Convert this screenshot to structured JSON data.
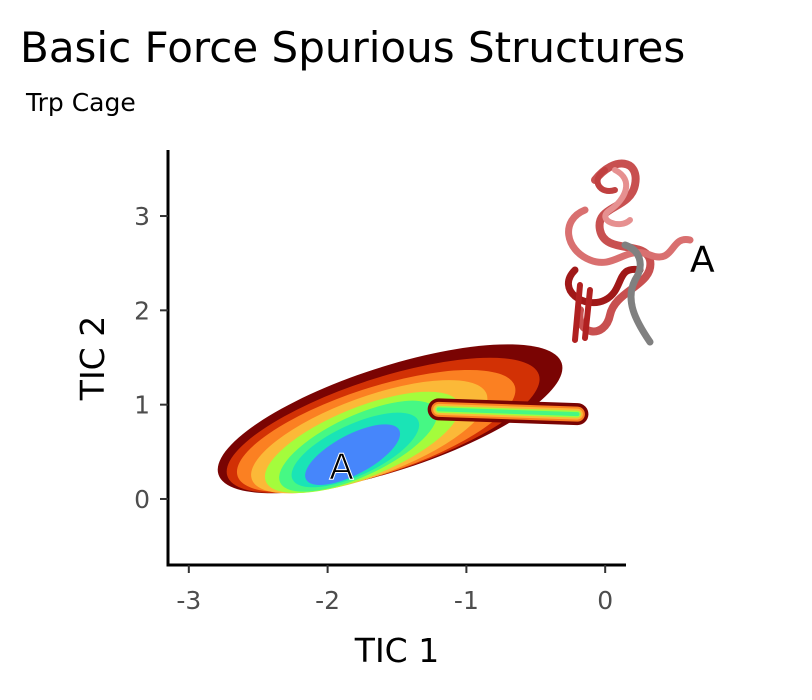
{
  "title": "Basic Force Spurious Structures",
  "subtitle": "Trp Cage",
  "chart_data": {
    "type": "heatmap",
    "description_kind": "hexbin density of structures in TIC space",
    "xlabel": "TIC 1",
    "ylabel": "TIC 2",
    "xlim": [
      -3.15,
      0.15
    ],
    "ylim": [
      -0.7,
      3.7
    ],
    "xticks": [
      -3,
      -2,
      -1,
      0
    ],
    "yticks": [
      0,
      1,
      2,
      3
    ],
    "xtick_labels": [
      "-3",
      "-2",
      "-1",
      "0"
    ],
    "ytick_labels": [
      "0",
      "1",
      "2",
      "3"
    ],
    "grid": false,
    "density_colors": [
      "#7a0403",
      "#d23105",
      "#fb8022",
      "#fbb938",
      "#a4fc3c",
      "#46f884",
      "#1ae4b6",
      "#4686fb",
      "#30123b"
    ],
    "density_levels": [
      {
        "cx": -1.55,
        "cy": 0.85,
        "rx": 1.3,
        "ry": 0.55,
        "tilt": -18
      },
      {
        "cx": -1.6,
        "cy": 0.78,
        "rx": 1.18,
        "ry": 0.5,
        "tilt": -18
      },
      {
        "cx": -1.65,
        "cy": 0.72,
        "rx": 1.05,
        "ry": 0.46,
        "tilt": -18
      },
      {
        "cx": -1.7,
        "cy": 0.66,
        "rx": 0.9,
        "ry": 0.42,
        "tilt": -20
      },
      {
        "cx": -1.75,
        "cy": 0.6,
        "rx": 0.75,
        "ry": 0.37,
        "tilt": -22
      },
      {
        "cx": -1.78,
        "cy": 0.56,
        "rx": 0.62,
        "ry": 0.32,
        "tilt": -25
      },
      {
        "cx": -1.8,
        "cy": 0.52,
        "rx": 0.5,
        "ry": 0.27,
        "tilt": -25
      },
      {
        "cx": -1.82,
        "cy": 0.47,
        "rx": 0.38,
        "ry": 0.21,
        "tilt": -28
      }
    ],
    "tail": {
      "x": [
        -1.2,
        -0.2
      ],
      "y": [
        0.95,
        0.9
      ]
    },
    "annotations": [
      {
        "text": "A",
        "x": -1.9,
        "y": 0.35
      },
      {
        "text": "A",
        "x": 0.7,
        "y": 2.55
      }
    ],
    "inset": "protein structure rendering (red/grey ribbons) labeled A"
  }
}
